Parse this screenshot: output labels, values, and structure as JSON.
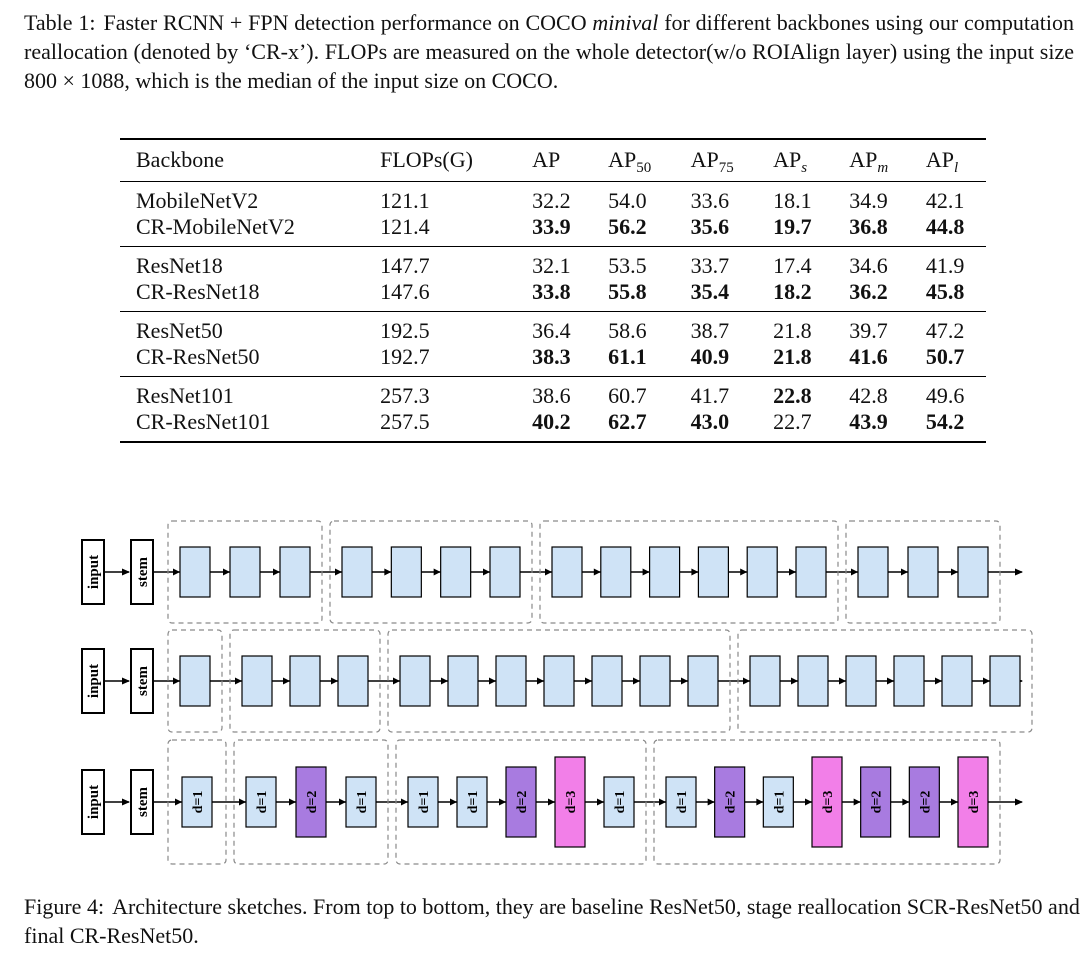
{
  "table": {
    "caption_label": "Table 1:",
    "caption_text_1": "Faster RCNN + FPN detection performance on COCO ",
    "caption_italic": "minival",
    "caption_text_2": " for different backbones using our computation reallocation (denoted by ‘CR-x’). FLOPs are measured on the whole detector(w/o ROIAlign layer) using the input size 800 × 1088, which is the median of the input size on COCO.",
    "headers": {
      "backbone": "Backbone",
      "flops": "FLOPs(G)",
      "ap": "AP",
      "ap50": "AP",
      "ap50_sub": "50",
      "ap75": "AP",
      "ap75_sub": "75",
      "aps": "AP",
      "aps_sub": "s",
      "apm": "AP",
      "apm_sub": "m",
      "apl": "AP",
      "apl_sub": "l"
    },
    "groups": [
      [
        {
          "name": "MobileNetV2",
          "flops": "121.1",
          "ap": "32.2",
          "ap50": "54.0",
          "ap75": "33.6",
          "aps": "18.1",
          "apm": "34.9",
          "apl": "42.1"
        },
        {
          "name": "CR-MobileNetV2",
          "flops": "121.4",
          "ap": "33.9",
          "ap50": "56.2",
          "ap75": "35.6",
          "aps": "19.7",
          "apm": "36.8",
          "apl": "44.8"
        }
      ],
      [
        {
          "name": "ResNet18",
          "flops": "147.7",
          "ap": "32.1",
          "ap50": "53.5",
          "ap75": "33.7",
          "aps": "17.4",
          "apm": "34.6",
          "apl": "41.9"
        },
        {
          "name": "CR-ResNet18",
          "flops": "147.6",
          "ap": "33.8",
          "ap50": "55.8",
          "ap75": "35.4",
          "aps": "18.2",
          "apm": "36.2",
          "apl": "45.8"
        }
      ],
      [
        {
          "name": "ResNet50",
          "flops": "192.5",
          "ap": "36.4",
          "ap50": "58.6",
          "ap75": "38.7",
          "aps": "21.8",
          "apm": "39.7",
          "apl": "47.2"
        },
        {
          "name": "CR-ResNet50",
          "flops": "192.7",
          "ap": "38.3",
          "ap50": "61.1",
          "ap75": "40.9",
          "aps": "21.8",
          "apm": "41.6",
          "apl": "50.7"
        }
      ],
      [
        {
          "name": "ResNet101",
          "flops": "257.3",
          "ap": "38.6",
          "ap50": "60.7",
          "ap75": "41.7",
          "aps": "22.8",
          "apm": "42.8",
          "apl": "49.6"
        },
        {
          "name": "CR-ResNet101",
          "flops": "257.5",
          "ap": "40.2",
          "ap50": "62.7",
          "ap75": "43.0",
          "aps": "22.7",
          "apm": "43.9",
          "apl": "54.2"
        }
      ]
    ]
  },
  "figure": {
    "caption_label": "Figure 4:",
    "caption_text": "Architecture sketches. From top to bottom, they are baseline ResNet50, stage reallocation SCR-ResNet50 and final CR-ResNet50.",
    "input_label": "input",
    "stem_label": "stem",
    "colors": {
      "d1": "#cfe3f6",
      "d2": "#a87be0",
      "d3": "#f27fe8",
      "plain": "#cfe3f6",
      "stage_border": "#8a8a8a"
    },
    "rows": [
      {
        "name": "baseline-resnet50",
        "stages": [
          [
            "",
            "",
            ""
          ],
          [
            "",
            "",
            "",
            ""
          ],
          [
            "",
            "",
            "",
            "",
            "",
            ""
          ],
          [
            "",
            "",
            ""
          ]
        ]
      },
      {
        "name": "stage-reallocation-scr-resnet50",
        "stages": [
          [
            ""
          ],
          [
            "",
            "",
            ""
          ],
          [
            "",
            "",
            "",
            "",
            "",
            "",
            ""
          ],
          [
            "",
            "",
            "",
            "",
            "",
            ""
          ]
        ]
      },
      {
        "name": "final-cr-resnet50",
        "stages": [
          [
            "d=1"
          ],
          [
            "d=1",
            "d=2",
            "d=1"
          ],
          [
            "d=1",
            "d=1",
            "d=2",
            "d=3",
            "d=1"
          ],
          [
            "d=1",
            "d=2",
            "d=1",
            "d=3",
            "d=2",
            "d=2",
            "d=3"
          ]
        ]
      }
    ]
  }
}
